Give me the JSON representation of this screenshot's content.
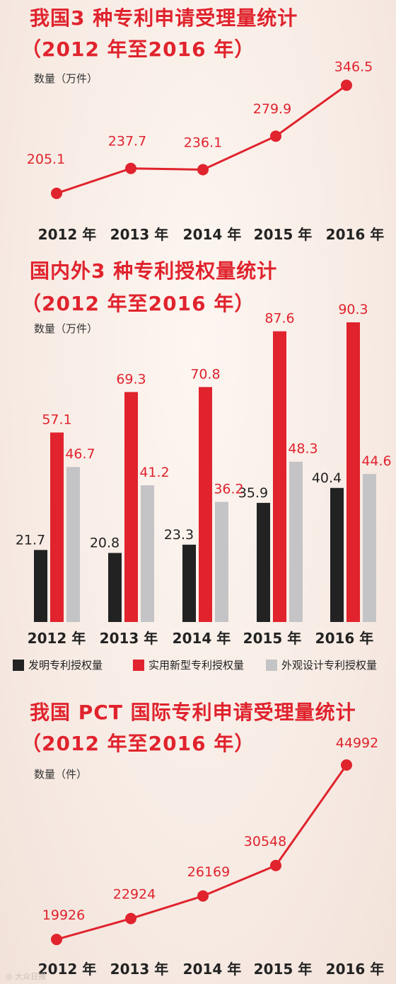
{
  "colors": {
    "red": "#e0232d",
    "black": "#222222",
    "gray": "#c4c4c6",
    "tick_text": "#222222"
  },
  "chart_data": [
    {
      "type": "line",
      "title": "我国3 种专利申请受理量统计",
      "subtitle": "（2012 年至2016 年）",
      "ylabel": "数量（万件）",
      "categories": [
        "2012 年",
        "2013 年",
        "2014 年",
        "2015 年",
        "2016 年"
      ],
      "values": [
        205.1,
        237.7,
        236.1,
        279.9,
        346.5
      ],
      "data_labels": [
        "205.1",
        "237.7",
        "236.1",
        "279.9",
        "346.5"
      ],
      "ylim": [
        180,
        370
      ],
      "grid": false
    },
    {
      "type": "bar",
      "title": "国内外3 种专利授权量统计",
      "subtitle": "（2012 年至2016 年）",
      "ylabel": "数量（万件）",
      "categories": [
        "2012 年",
        "2013 年",
        "2014 年",
        "2015 年",
        "2016 年"
      ],
      "series": [
        {
          "name": "发明专利授权量",
          "values": [
            21.7,
            20.8,
            23.3,
            35.9,
            40.4
          ]
        },
        {
          "name": "实用新型专利授权量",
          "values": [
            57.1,
            69.3,
            70.8,
            87.6,
            90.3
          ]
        },
        {
          "name": "外观设计专利授权量",
          "values": [
            46.7,
            41.2,
            36.2,
            48.3,
            44.6
          ]
        }
      ],
      "ylim": [
        0,
        100
      ],
      "legend": "bottom",
      "grid": false
    },
    {
      "type": "line",
      "title": "我国 PCT 国际专利申请受理量统计",
      "subtitle": "（2012 年至2016 年）",
      "ylabel": "数量（件）",
      "categories": [
        "2012 年",
        "2013 年",
        "2014 年",
        "2015 年",
        "2016 年"
      ],
      "values": [
        19926,
        22924,
        26169,
        30548,
        44992
      ],
      "data_labels": [
        "19926",
        "22924",
        "26169",
        "30548",
        "44992"
      ],
      "ylim": [
        18000,
        46000
      ],
      "grid": false
    }
  ]
}
